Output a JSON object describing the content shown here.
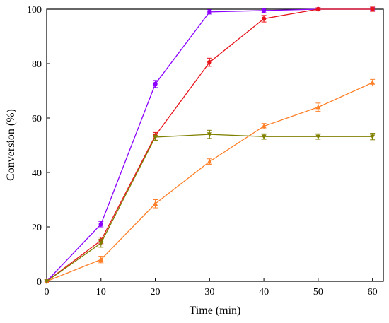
{
  "chart_data": {
    "type": "line",
    "title": "",
    "xlabel": "Time (min)",
    "ylabel": "Conversion (%)",
    "xlim": [
      0,
      62
    ],
    "ylim": [
      0,
      100
    ],
    "x_ticks": [
      0,
      10,
      20,
      30,
      40,
      50,
      60
    ],
    "y_ticks": [
      0,
      20,
      40,
      60,
      80,
      100
    ],
    "grid": false,
    "legend": "none",
    "series": [
      {
        "color": "#8b00ff",
        "marker": "circle",
        "x": [
          0,
          10,
          20,
          30,
          40,
          50,
          60
        ],
        "y": [
          0,
          21,
          72.5,
          99,
          99.5,
          100,
          100
        ],
        "err": [
          0,
          1.0,
          1.3,
          0.8,
          0.8,
          0.5,
          0.5
        ]
      },
      {
        "color": "#e8141c",
        "marker": "circle",
        "x": [
          0,
          10,
          20,
          30,
          40,
          50,
          60
        ],
        "y": [
          0,
          15,
          53.5,
          80.5,
          96.5,
          100,
          100
        ],
        "err": [
          0,
          1.2,
          1.2,
          1.5,
          1.2,
          0.5,
          0.8
        ]
      },
      {
        "color": "#ff7f27",
        "marker": "triangle-up",
        "x": [
          0,
          10,
          20,
          30,
          40,
          50,
          60
        ],
        "y": [
          0,
          8,
          28.5,
          44,
          57,
          64,
          73
        ],
        "err": [
          0,
          1.2,
          1.5,
          1.0,
          1.0,
          1.5,
          1.2
        ]
      },
      {
        "color": "#808000",
        "marker": "triangle-down",
        "x": [
          0,
          10,
          20,
          30,
          40,
          50,
          60
        ],
        "y": [
          0,
          14,
          53,
          54,
          53.2,
          53.2,
          53.2
        ],
        "err": [
          0,
          1.5,
          1.2,
          1.5,
          1.0,
          1.0,
          1.2
        ]
      }
    ]
  }
}
